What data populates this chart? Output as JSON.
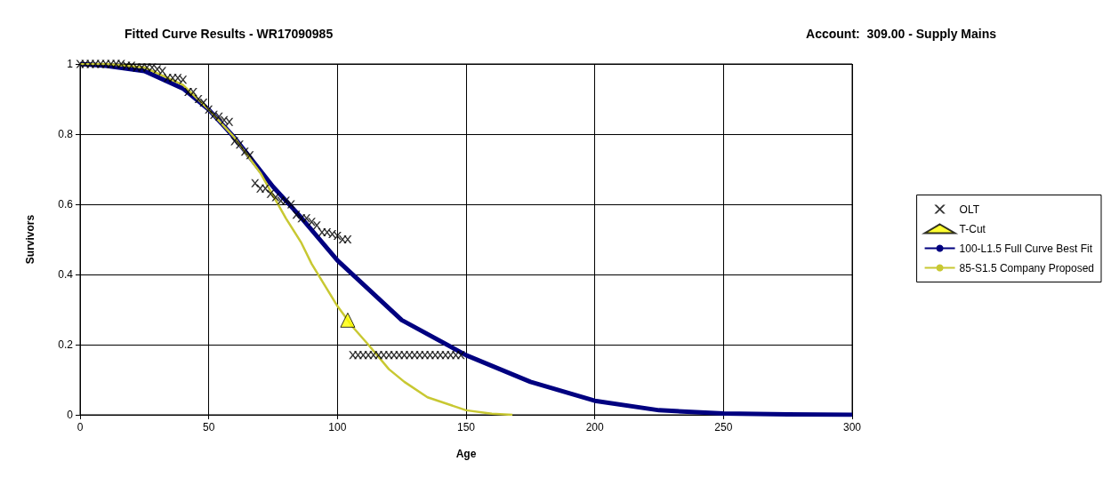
{
  "chart_data": {
    "type": "line",
    "title": "Fitted Curve Results - WR17090985",
    "subtitle": "Account:  309.00 - Supply Mains",
    "xlabel": "Age",
    "ylabel": "Survivors",
    "xlim": [
      0,
      300
    ],
    "xticks": [
      0,
      50,
      100,
      150,
      200,
      250,
      300
    ],
    "ylim": [
      0,
      1
    ],
    "yticks": [
      0,
      0.2,
      0.4,
      0.6,
      0.8,
      1
    ],
    "grid": true,
    "legend": "right",
    "series": [
      {
        "name": "OLT",
        "type": "scatter",
        "marker": "cross",
        "color": "#000000",
        "x": [
          0,
          2,
          4,
          6,
          8,
          10,
          12,
          14,
          16,
          18,
          20,
          22,
          24,
          26,
          28,
          30,
          32,
          34,
          36,
          38,
          40,
          42,
          44,
          46,
          48,
          50,
          52,
          54,
          56,
          58,
          60,
          62,
          64,
          66,
          68,
          70,
          72,
          74,
          76,
          78,
          80,
          82,
          84,
          86,
          88,
          90,
          92,
          94,
          96,
          98,
          100,
          102,
          104,
          106,
          108,
          110,
          112,
          114,
          116,
          118,
          120,
          122,
          124,
          126,
          128,
          130,
          132,
          134,
          136,
          138,
          140,
          142,
          144,
          146,
          148
        ],
        "values": [
          1,
          1,
          1,
          1,
          1,
          1,
          1,
          1,
          1,
          0.995,
          0.995,
          0.99,
          0.99,
          0.99,
          0.99,
          0.985,
          0.98,
          0.96,
          0.96,
          0.96,
          0.955,
          0.92,
          0.92,
          0.9,
          0.89,
          0.87,
          0.855,
          0.85,
          0.84,
          0.835,
          0.78,
          0.77,
          0.75,
          0.74,
          0.66,
          0.645,
          0.645,
          0.63,
          0.62,
          0.61,
          0.61,
          0.6,
          0.57,
          0.56,
          0.56,
          0.55,
          0.54,
          0.52,
          0.52,
          0.515,
          0.51,
          0.5,
          0.5,
          0.17,
          0.17,
          0.17,
          0.17,
          0.17,
          0.17,
          0.17,
          0.17,
          0.17,
          0.17,
          0.17,
          0.17,
          0.17,
          0.17,
          0.17,
          0.17,
          0.17,
          0.17,
          0.17,
          0.17,
          0.17,
          0.17
        ]
      },
      {
        "name": "T-Cut",
        "type": "scatter",
        "marker": "triangle",
        "color": "#ffff00",
        "x": [
          104
        ],
        "values": [
          0.27
        ]
      },
      {
        "name": "100-L1.5 Full Curve Best Fit",
        "marker": "none",
        "color": "#000080",
        "x": [
          0,
          10,
          25,
          40,
          50,
          60,
          75,
          85,
          100,
          125,
          150,
          175,
          200,
          225,
          250,
          275,
          300
        ],
        "values": [
          1,
          0.995,
          0.98,
          0.93,
          0.87,
          0.79,
          0.65,
          0.57,
          0.44,
          0.27,
          0.17,
          0.094,
          0.04,
          0.013,
          0.004,
          0.001,
          0
        ]
      },
      {
        "name": "85-S1.5 Company Proposed",
        "marker": "none",
        "color": "#c8c832",
        "x": [
          0,
          10,
          25,
          40,
          50,
          60,
          70,
          75,
          80,
          86,
          90,
          100,
          106,
          112,
          120,
          126,
          135,
          150,
          160,
          168
        ],
        "values": [
          1,
          1,
          0.99,
          0.94,
          0.87,
          0.79,
          0.69,
          0.625,
          0.56,
          0.49,
          0.43,
          0.31,
          0.25,
          0.2,
          0.13,
          0.094,
          0.05,
          0.013,
          0.003,
          0
        ]
      }
    ]
  }
}
